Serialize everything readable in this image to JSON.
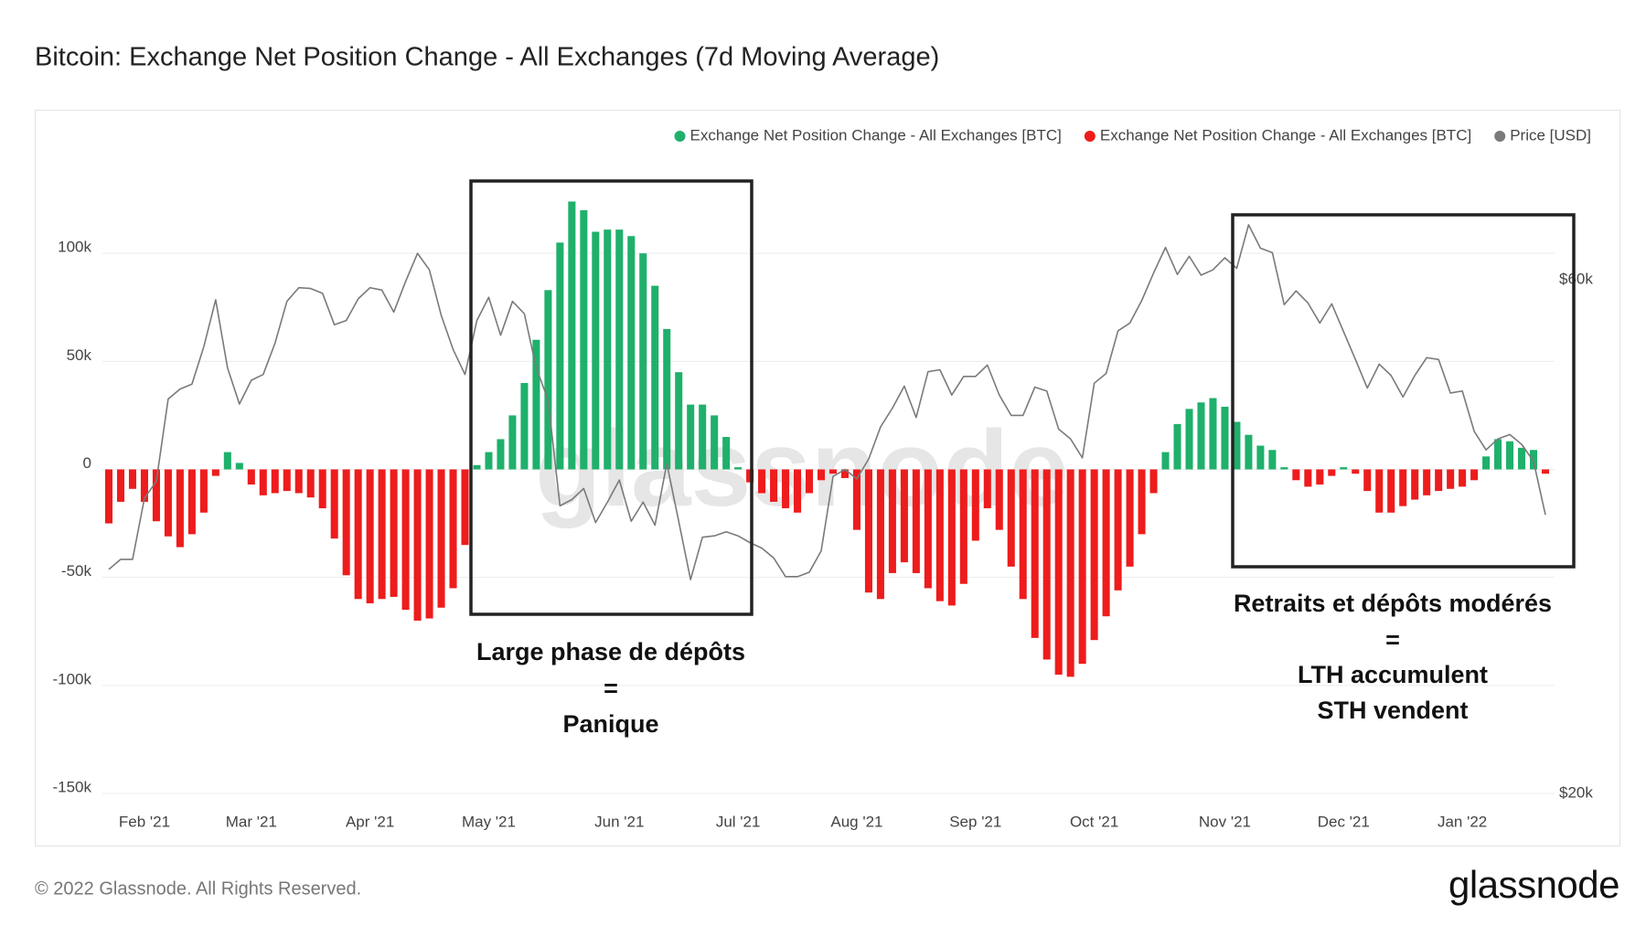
{
  "chart_data": {
    "type": "bar",
    "title": "Bitcoin: Exchange Net Position Change - All Exchanges (7d Moving Average)",
    "categories": [
      null,
      null,
      null,
      "Feb '21",
      null,
      null,
      null,
      null,
      null,
      null,
      null,
      null,
      "Mar '21",
      null,
      null,
      null,
      null,
      null,
      null,
      null,
      null,
      null,
      "Apr '21",
      null,
      null,
      null,
      null,
      null,
      null,
      null,
      null,
      null,
      "May '21",
      null,
      null,
      null,
      null,
      null,
      null,
      null,
      null,
      null,
      null,
      "Jun '21",
      null,
      null,
      null,
      null,
      null,
      null,
      null,
      null,
      null,
      "Jul '21",
      null,
      null,
      null,
      null,
      null,
      null,
      null,
      null,
      null,
      "Aug '21",
      null,
      null,
      null,
      null,
      null,
      null,
      null,
      null,
      null,
      "Sep '21",
      null,
      null,
      null,
      null,
      null,
      null,
      null,
      null,
      null,
      "Oct '21",
      null,
      null,
      null,
      null,
      null,
      null,
      null,
      null,
      null,
      null,
      "Nov '21",
      null,
      null,
      null,
      null,
      null,
      null,
      null,
      null,
      null,
      "Dec '21",
      null,
      null,
      null,
      null,
      null,
      null,
      null,
      null,
      null,
      "Jan '22",
      null,
      null,
      null,
      null,
      null,
      null,
      null
    ],
    "series": [
      {
        "name": "Exchange Net Position Change - All Exchanges [BTC]",
        "color": "#1fb06b",
        "values": [
          null,
          null,
          null,
          null,
          null,
          null,
          null,
          null,
          null,
          null,
          8000,
          3000,
          null,
          null,
          null,
          null,
          null,
          null,
          null,
          null,
          null,
          null,
          null,
          null,
          null,
          null,
          null,
          null,
          null,
          null,
          null,
          2000,
          8000,
          14000,
          25000,
          40000,
          60000,
          83000,
          105000,
          124000,
          120000,
          110000,
          111000,
          111000,
          108000,
          100000,
          85000,
          65000,
          45000,
          30000,
          30000,
          25000,
          15000,
          1000,
          null,
          null,
          null,
          null,
          null,
          null,
          null,
          null,
          null,
          null,
          null,
          null,
          null,
          null,
          null,
          null,
          null,
          null,
          null,
          null,
          null,
          null,
          null,
          null,
          null,
          null,
          null,
          null,
          null,
          null,
          null,
          null,
          null,
          null,
          null,
          8000,
          21000,
          28000,
          31000,
          33000,
          29000,
          22000,
          16000,
          11000,
          9000,
          1000,
          null,
          null,
          null,
          null,
          1000,
          null,
          null,
          null,
          null,
          null,
          null,
          null,
          null,
          null,
          null,
          null,
          6000,
          14000,
          13000,
          10000,
          9000,
          null
        ]
      },
      {
        "name": "Exchange Net Position Change - All Exchanges [BTC]",
        "color": "#ee1c1c",
        "values": [
          -25000,
          -15000,
          -9000,
          -15000,
          -24000,
          -31000,
          -36000,
          -30000,
          -20000,
          -3000,
          null,
          null,
          -7000,
          -12000,
          -11000,
          -10000,
          -11000,
          -13000,
          -18000,
          -32000,
          -49000,
          -60000,
          -62000,
          -60000,
          -59000,
          -65000,
          -70000,
          -69000,
          -64000,
          -55000,
          -35000,
          null,
          null,
          null,
          null,
          null,
          null,
          null,
          null,
          null,
          null,
          null,
          null,
          null,
          null,
          null,
          null,
          null,
          null,
          null,
          null,
          null,
          null,
          null,
          -6000,
          -11000,
          -15000,
          -18000,
          -20000,
          -11000,
          -5000,
          -2000,
          -4000,
          -28000,
          -57000,
          -60000,
          -48000,
          -43000,
          -48000,
          -55000,
          -61000,
          -63000,
          -53000,
          -33000,
          -18000,
          -28000,
          -45000,
          -60000,
          -78000,
          -88000,
          -95000,
          -96000,
          -90000,
          -79000,
          -68000,
          -56000,
          -45000,
          -30000,
          -11000,
          null,
          null,
          null,
          null,
          null,
          null,
          null,
          null,
          null,
          null,
          null,
          -5000,
          -8000,
          -7000,
          -3000,
          null,
          -2000,
          -10000,
          -20000,
          -20000,
          -17000,
          -14000,
          -12000,
          -10000,
          -9000,
          -8000,
          -5000,
          null,
          null,
          null,
          null,
          null,
          -2000
        ]
      },
      {
        "name": "Price [USD]",
        "color": "#7a7a7a",
        "axis": "y2",
        "type": "line",
        "values": [
          32300,
          33000,
          33000,
          37600,
          39000,
          46500,
          47500,
          48000,
          52000,
          57500,
          49700,
          46000,
          48400,
          49000,
          52400,
          57300,
          59000,
          58900,
          58300,
          54500,
          55000,
          57600,
          59000,
          58700,
          56000,
          59800,
          63500,
          61300,
          55600,
          51700,
          49000,
          55000,
          57800,
          53300,
          57300,
          55800,
          49700,
          46400,
          37000,
          37500,
          38400,
          35700,
          37300,
          39100,
          35800,
          37300,
          35500,
          40500,
          35800,
          31600,
          34600,
          34700,
          35000,
          34700,
          34200,
          33800,
          33100,
          31800,
          31800,
          32100,
          33600,
          39400,
          40000,
          39200,
          40900,
          43800,
          45600,
          47800,
          44700,
          49300,
          49500,
          46900,
          48800,
          48800,
          50000,
          46900,
          44900,
          44900,
          47700,
          47300,
          43600,
          42700,
          41000,
          48100,
          49100,
          53800,
          54700,
          57400,
          60900,
          64300,
          60700,
          63100,
          60600,
          61300,
          62900,
          61500,
          67500,
          64200,
          63600,
          56900,
          58600,
          57100,
          54700,
          57000,
          53700,
          50600,
          47600,
          50100,
          48900,
          46700,
          48900,
          50800,
          50600,
          47100,
          47300,
          43400,
          41700,
          42700,
          43100,
          42200,
          40700,
          36300
        ]
      }
    ],
    "ylim": [
      -150000,
      150000
    ],
    "yticks": [
      {
        "value": -150000,
        "label": "-150k"
      },
      {
        "value": -100000,
        "label": "-100k"
      },
      {
        "value": -50000,
        "label": "-50k"
      },
      0,
      {
        "value": 50000,
        "label": "50k"
      },
      {
        "value": 100000,
        "label": "100k"
      }
    ],
    "y2lim": [
      20000,
      80000
    ],
    "y2ticks": [
      {
        "value": 20000,
        "label": "$20k"
      },
      {
        "value": 60000,
        "label": "$60k"
      }
    ],
    "y2_log_scale": true,
    "grid": true,
    "legend": "top-right",
    "annotations": [
      [
        "Large phase de dépôts",
        "=",
        "Panique"
      ],
      [
        "Retraits et dépôts modérés",
        "=",
        "LTH accumulent",
        "STH vendent"
      ]
    ]
  },
  "watermark": "glassnode",
  "footer": {
    "copyright": "© 2022 Glassnode. All Rights Reserved.",
    "logo": "glassnode"
  }
}
